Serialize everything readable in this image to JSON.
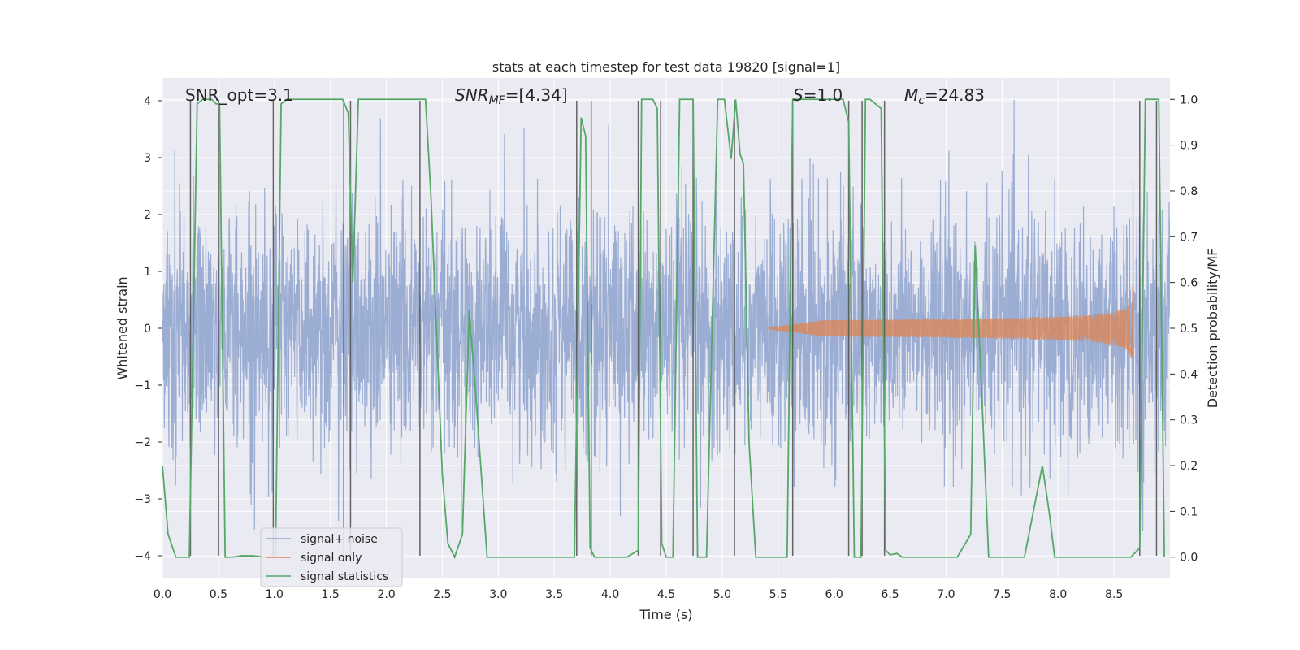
{
  "chart_data": {
    "type": "line",
    "title": "stats at each timestep for test data 19820 [signal=1]",
    "xlabel": "Time (s)",
    "ylabel_left": "Whitened strain",
    "ylabel_right": "Detection probability/MF",
    "xlim": [
      0.0,
      9.0
    ],
    "ylim_left": [
      -4.4,
      4.4
    ],
    "ylim_right": [
      -0.0466,
      1.0466
    ],
    "x_ticks": [
      "0.0",
      "0.5",
      "1.0",
      "1.5",
      "2.0",
      "2.5",
      "3.0",
      "3.5",
      "4.0",
      "4.5",
      "5.0",
      "5.5",
      "6.0",
      "6.5",
      "7.0",
      "7.5",
      "8.0",
      "8.5"
    ],
    "y_ticks_left": [
      "4",
      "3",
      "2",
      "1",
      "0",
      "−1",
      "−2",
      "−3",
      "−4"
    ],
    "y_ticks_right": [
      "1.0",
      "0.9",
      "0.8",
      "0.7",
      "0.6",
      "0.5",
      "0.4",
      "0.3",
      "0.2",
      "0.1",
      "0.0"
    ],
    "grid": true,
    "legend_position": "lower-left",
    "annotations": {
      "snr_opt": "SNR_opt=3.1",
      "snr_mf_label": "SNR",
      "snr_mf_sub": "MF",
      "snr_mf_value": "=[4.34]",
      "s_label": "S",
      "s_value": "=1.0",
      "mc_label": "M",
      "mc_sub": "c",
      "mc_value": "=24.83"
    },
    "series": [
      {
        "name": "signal+ noise",
        "color": "#92a6cf",
        "description": "whitened strain, noise amplitude ~±2.5 with spikes to ±4"
      },
      {
        "name": "signal only",
        "color": "#dd8452",
        "description": "chirp waveform growing toward merger near t=8.7 s, peak amplitude ~0.75"
      },
      {
        "name": "signal statistics",
        "color": "#55a868",
        "x": [
          0.0,
          0.05,
          0.12,
          0.24,
          0.31,
          0.36,
          0.44,
          0.48,
          0.51,
          0.56,
          0.62,
          0.71,
          0.8,
          0.94,
          1.01,
          1.06,
          1.11,
          1.61,
          1.66,
          1.7,
          1.75,
          2.3,
          2.35,
          2.4,
          2.5,
          2.55,
          2.61,
          2.68,
          2.74,
          2.8,
          2.9,
          2.98,
          3.5,
          3.68,
          3.74,
          3.78,
          3.82,
          3.86,
          4.15,
          4.25,
          4.28,
          4.38,
          4.42,
          4.46,
          4.5,
          4.56,
          4.62,
          4.74,
          4.78,
          4.86,
          4.96,
          5.02,
          5.08,
          5.12,
          5.16,
          5.19,
          5.24,
          5.3,
          5.5,
          5.58,
          5.63,
          5.68,
          5.72,
          6.08,
          6.13,
          6.18,
          6.24,
          6.28,
          6.32,
          6.42,
          6.46,
          6.5,
          6.56,
          6.61,
          6.67,
          6.85,
          7.1,
          7.22,
          7.26,
          7.32,
          7.38,
          7.44,
          7.5,
          7.7,
          7.86,
          7.92,
          7.97,
          8.04,
          8.1,
          8.24,
          8.4,
          8.65,
          8.73,
          8.78,
          8.85,
          8.9,
          8.95
        ],
        "y": [
          0.2,
          0.05,
          0.0,
          0.0,
          0.99,
          1.0,
          1.0,
          0.99,
          0.99,
          0.0,
          0.0,
          0.003,
          0.003,
          0.0,
          0.0,
          0.99,
          1.0,
          1.0,
          0.97,
          0.6,
          1.0,
          1.0,
          1.0,
          0.78,
          0.18,
          0.03,
          0.0,
          0.05,
          0.54,
          0.35,
          0.0,
          0.0,
          0.0,
          0.0,
          0.96,
          0.92,
          0.02,
          0.0,
          0.0,
          0.015,
          1.0,
          1.0,
          0.98,
          0.03,
          0.0,
          0.0,
          1.0,
          1.0,
          0.0,
          0.0,
          1.0,
          1.0,
          0.87,
          1.0,
          0.88,
          0.86,
          0.25,
          0.0,
          0.0,
          0.0,
          1.0,
          1.0,
          1.0,
          1.0,
          0.95,
          0.0,
          0.0,
          1.0,
          1.0,
          0.98,
          0.015,
          0.005,
          0.008,
          0.0,
          0.0,
          0.0,
          0.0,
          0.05,
          0.68,
          0.35,
          0.0,
          0.0,
          0.0,
          0.0,
          0.2,
          0.1,
          0.0,
          0.0,
          0.0,
          0.0,
          0.0,
          0.0,
          0.02,
          1.0,
          1.0,
          1.0,
          0.0
        ]
      }
    ],
    "vertical_markers_x": [
      0.25,
      0.5,
      0.99,
      1.62,
      1.68,
      2.3,
      3.7,
      3.83,
      4.25,
      4.45,
      4.74,
      5.11,
      5.63,
      6.13,
      6.25,
      6.45,
      8.73,
      8.88
    ]
  }
}
